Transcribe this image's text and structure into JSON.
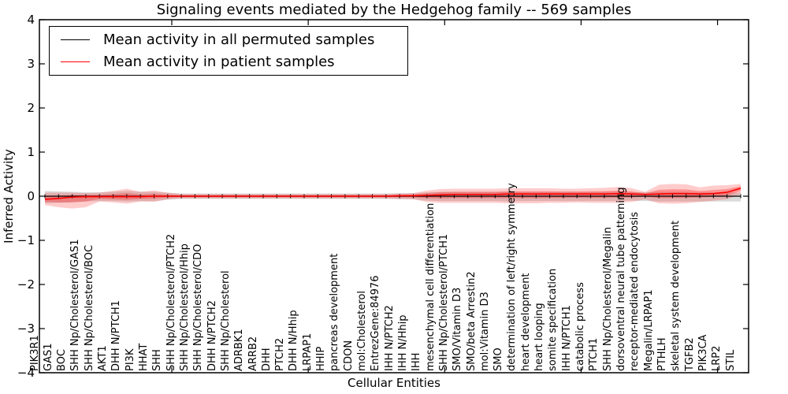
{
  "chart_data": {
    "type": "line",
    "title": "Signaling events mediated by the Hedgehog family -- 569 samples",
    "xlabel": "Cellular Entities",
    "ylabel": "Inferred Activity",
    "ylim": [
      -4,
      4
    ],
    "yticks": [
      4,
      3,
      2,
      1,
      0,
      -1,
      -2,
      -3,
      -4
    ],
    "grid": false,
    "legend_position": "upper-left",
    "sample_count": "569",
    "categories": [
      "PIK3R1",
      "GAS1",
      "BOC",
      "SHH Np/Cholesterol/GAS1",
      "SHH Np/Cholesterol/BOC",
      "AKT1",
      "DHH N/PTCH1",
      "PI3K",
      "HHAT",
      "SHH",
      "SHH Np/Cholesterol/PTCH2",
      "SHH Np/Cholesterol/Hhip",
      "SHH Np/Cholesterol/CDO",
      "DHH N/PTCH2",
      "SHH Np/Cholesterol",
      "ADRBK1",
      "ARRB2",
      "DHH",
      "PTCH2",
      "DHH N/Hhip",
      "LRPAP1",
      "HHIP",
      "pancreas development",
      "CDON",
      "mol:Cholesterol",
      "EntrezGene:84976",
      "IHH N/PTCH2",
      "IHH N/Hhip",
      "IHH",
      "mesenchymal cell differentiation",
      "SHH Np/Cholesterol/PTCH1",
      "SMO/Vitamin D3",
      "SMO/beta Arrestin2",
      "mol:Vitamin D3",
      "SMO",
      "determination of left/right symmetry",
      "heart development",
      "heart looping",
      "somite specification",
      "IHH N/PTCH1",
      "catabolic process",
      "PTCH1",
      "SHH Np/Cholesterol/Megalin",
      "dorsoventral neural tube patterning",
      "receptor-mediated endocytosis",
      "Megalin/LRPAP1",
      "PTHLH",
      "skeletal system development",
      "TGFB2",
      "PIK3CA",
      "LRP2",
      "STIL"
    ],
    "series": [
      {
        "name": "Mean activity in all permuted samples",
        "color": "#000000",
        "band_color": "#888888",
        "values": [
          0,
          0,
          0,
          0,
          0,
          0,
          0,
          0,
          0,
          0,
          0,
          0,
          0,
          0,
          0,
          0,
          0,
          0,
          0,
          0,
          0,
          0,
          0,
          0,
          0,
          0,
          0,
          0,
          0,
          0,
          0,
          0,
          0,
          0,
          0,
          0,
          0,
          0,
          0,
          0,
          0,
          0,
          0,
          0,
          0,
          0,
          0,
          0,
          0,
          0,
          0,
          0
        ],
        "band_upper": [
          0.12,
          0.11,
          0.1,
          0.09,
          0.09,
          0.1,
          0.12,
          0.1,
          0.1,
          0.08,
          0.06,
          0.06,
          0.06,
          0.06,
          0.06,
          0.06,
          0.06,
          0.06,
          0.06,
          0.06,
          0.06,
          0.06,
          0.06,
          0.06,
          0.06,
          0.06,
          0.07,
          0.07,
          0.09,
          0.1,
          0.1,
          0.1,
          0.1,
          0.1,
          0.1,
          0.1,
          0.1,
          0.1,
          0.1,
          0.1,
          0.1,
          0.1,
          0.1,
          0.09,
          0.09,
          0.1,
          0.1,
          0.1,
          0.09,
          0.09,
          0.09,
          0.08
        ],
        "band_lower": [
          -0.16,
          -0.15,
          -0.14,
          -0.12,
          -0.11,
          -0.11,
          -0.12,
          -0.11,
          -0.11,
          -0.08,
          -0.06,
          -0.06,
          -0.06,
          -0.06,
          -0.06,
          -0.06,
          -0.06,
          -0.06,
          -0.06,
          -0.06,
          -0.06,
          -0.06,
          -0.06,
          -0.06,
          -0.06,
          -0.06,
          -0.07,
          -0.07,
          -0.1,
          -0.11,
          -0.11,
          -0.11,
          -0.11,
          -0.11,
          -0.12,
          -0.11,
          -0.11,
          -0.11,
          -0.11,
          -0.11,
          -0.11,
          -0.11,
          -0.11,
          -0.1,
          -0.11,
          -0.12,
          -0.12,
          -0.12,
          -0.12,
          -0.12,
          -0.12,
          -0.12
        ]
      },
      {
        "name": "Mean activity in patient samples",
        "color": "#ff0000",
        "band_color": "#ff0000",
        "inner_band_scale": 0.45,
        "values": [
          -0.07,
          -0.05,
          -0.02,
          -0.01,
          -0.01,
          -0.01,
          -0.01,
          -0.01,
          0,
          0,
          0,
          0,
          0,
          0,
          0,
          0,
          0,
          0,
          0,
          0,
          0,
          0,
          0,
          0,
          0,
          0,
          0.01,
          0.01,
          0.02,
          0.03,
          0.04,
          0.04,
          0.04,
          0.04,
          0.05,
          0.05,
          0.05,
          0.05,
          0.05,
          0.05,
          0.05,
          0.05,
          0.06,
          0.05,
          0.04,
          0.05,
          0.06,
          0.06,
          0.05,
          0.06,
          0.09,
          0.18
        ],
        "band_upper": [
          0.08,
          0.08,
          0.08,
          0.07,
          0.08,
          0.12,
          0.17,
          0.1,
          0.13,
          0.08,
          0.05,
          0.05,
          0.05,
          0.05,
          0.05,
          0.05,
          0.05,
          0.05,
          0.05,
          0.05,
          0.05,
          0.05,
          0.05,
          0.05,
          0.05,
          0.05,
          0.06,
          0.07,
          0.13,
          0.16,
          0.17,
          0.17,
          0.17,
          0.17,
          0.18,
          0.18,
          0.18,
          0.18,
          0.17,
          0.17,
          0.18,
          0.19,
          0.21,
          0.18,
          0.1,
          0.26,
          0.28,
          0.27,
          0.2,
          0.24,
          0.25,
          0.28
        ],
        "band_lower": [
          -0.2,
          -0.25,
          -0.28,
          -0.25,
          -0.12,
          -0.14,
          -0.17,
          -0.12,
          -0.13,
          -0.07,
          -0.05,
          -0.05,
          -0.05,
          -0.05,
          -0.05,
          -0.05,
          -0.05,
          -0.05,
          -0.05,
          -0.05,
          -0.05,
          -0.05,
          -0.05,
          -0.05,
          -0.05,
          -0.05,
          -0.06,
          -0.07,
          -0.13,
          -0.15,
          -0.15,
          -0.15,
          -0.15,
          -0.15,
          -0.16,
          -0.16,
          -0.16,
          -0.15,
          -0.15,
          -0.14,
          -0.15,
          -0.15,
          -0.15,
          -0.13,
          -0.07,
          -0.16,
          -0.17,
          -0.16,
          -0.13,
          -0.1,
          -0.07,
          0.05
        ]
      }
    ]
  }
}
